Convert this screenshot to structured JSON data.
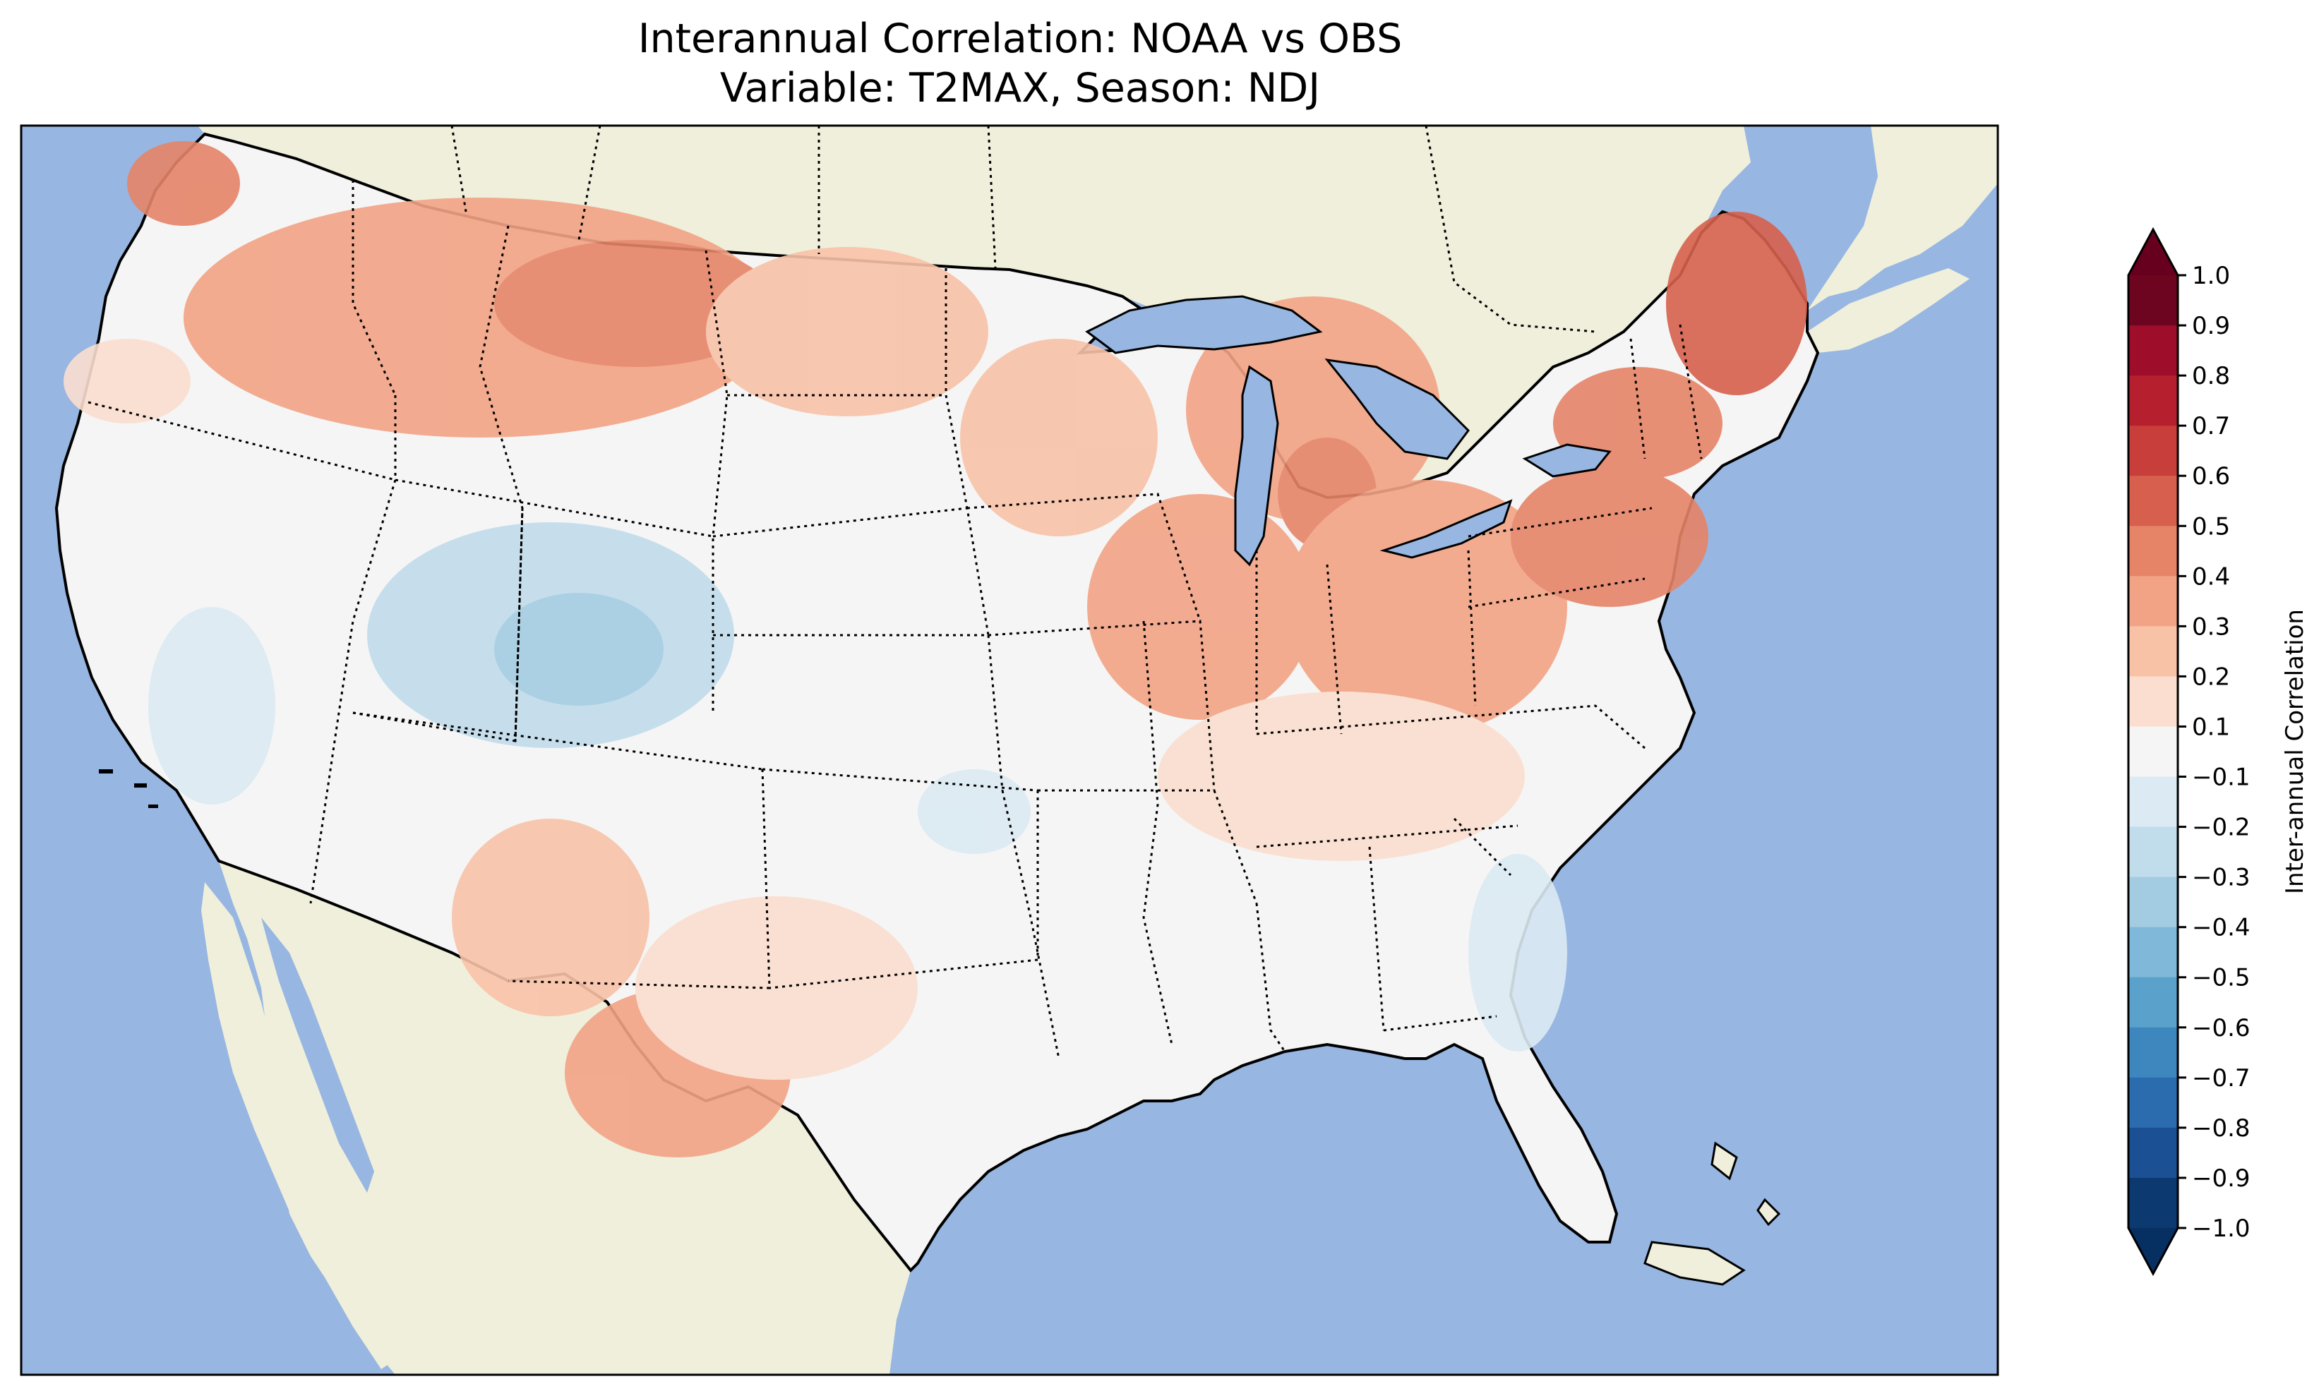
{
  "figure": {
    "title_line1": "Interannual Correlation: NOAA vs OBS",
    "title_line2": "Variable: T2MAX, Season: NDJ"
  },
  "map": {
    "region": "Contiguous United States",
    "ocean_color": "#97b6e1",
    "land_color": "#efefdb",
    "coastline_color": "#000000",
    "border_style": "dotted"
  },
  "colorbar": {
    "label": "Inter-annual Correlation",
    "extend": "both",
    "ticks": [
      "1.0",
      "0.9",
      "0.8",
      "0.7",
      "0.6",
      "0.5",
      "0.4",
      "0.3",
      "0.2",
      "0.1",
      "−0.1",
      "−0.2",
      "−0.3",
      "−0.4",
      "−0.5",
      "−0.6",
      "−0.7",
      "−0.8",
      "−0.9",
      "−1.0"
    ],
    "colors_top_to_bottom": [
      "#6d0420",
      "#9e0d2a",
      "#b51f2e",
      "#c83e3a",
      "#d6604d",
      "#e68468",
      "#f2a385",
      "#f8c2a7",
      "#fbdecf",
      "#f5f5f5",
      "#dbeaf3",
      "#c1dceb",
      "#a3cce3",
      "#7fb8d8",
      "#5aa1cb",
      "#3d87be",
      "#2b6cae",
      "#1b5194",
      "#0b3970"
    ],
    "extend_top_color": "#67001f",
    "extend_bottom_color": "#053061"
  }
}
